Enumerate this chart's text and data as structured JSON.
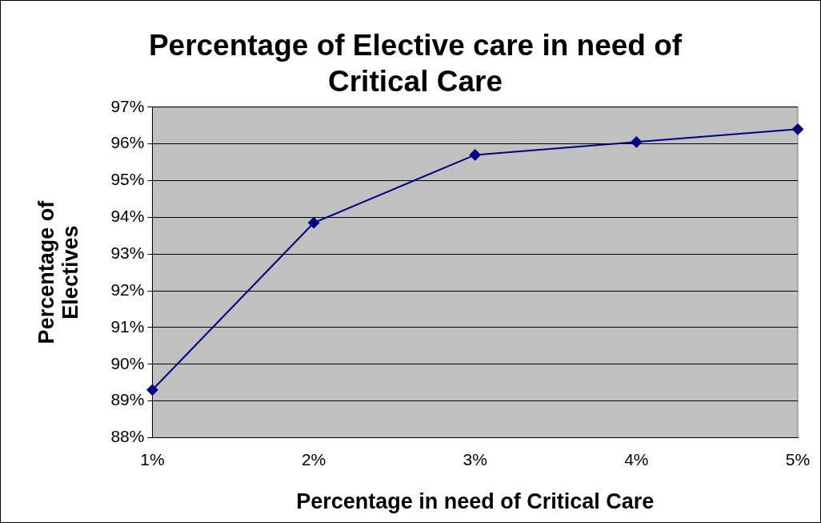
{
  "chart_data": {
    "type": "line",
    "title": "Percentage of Elective care in need of Critical Care",
    "xlabel": "Percentage in need of Critical Care",
    "ylabel": "Percentage of Electives",
    "categories": [
      "1%",
      "2%",
      "3%",
      "4%",
      "5%"
    ],
    "series": [
      {
        "color": "#000080",
        "values": [
          89.3,
          93.85,
          95.7,
          96.05,
          96.4
        ]
      }
    ],
    "ylim": [
      88,
      97
    ],
    "yticks": [
      {
        "value": 88,
        "label": "88%"
      },
      {
        "value": 89,
        "label": "89%"
      },
      {
        "value": 90,
        "label": "90%"
      },
      {
        "value": 91,
        "label": "91%"
      },
      {
        "value": 92,
        "label": "92%"
      },
      {
        "value": 93,
        "label": "93%"
      },
      {
        "value": 94,
        "label": "94%"
      },
      {
        "value": 95,
        "label": "95%"
      },
      {
        "value": 96,
        "label": "96%"
      },
      {
        "value": 97,
        "label": "97%"
      }
    ],
    "grid": "y",
    "legend": false,
    "marker": "diamond",
    "line_style": "solid"
  }
}
